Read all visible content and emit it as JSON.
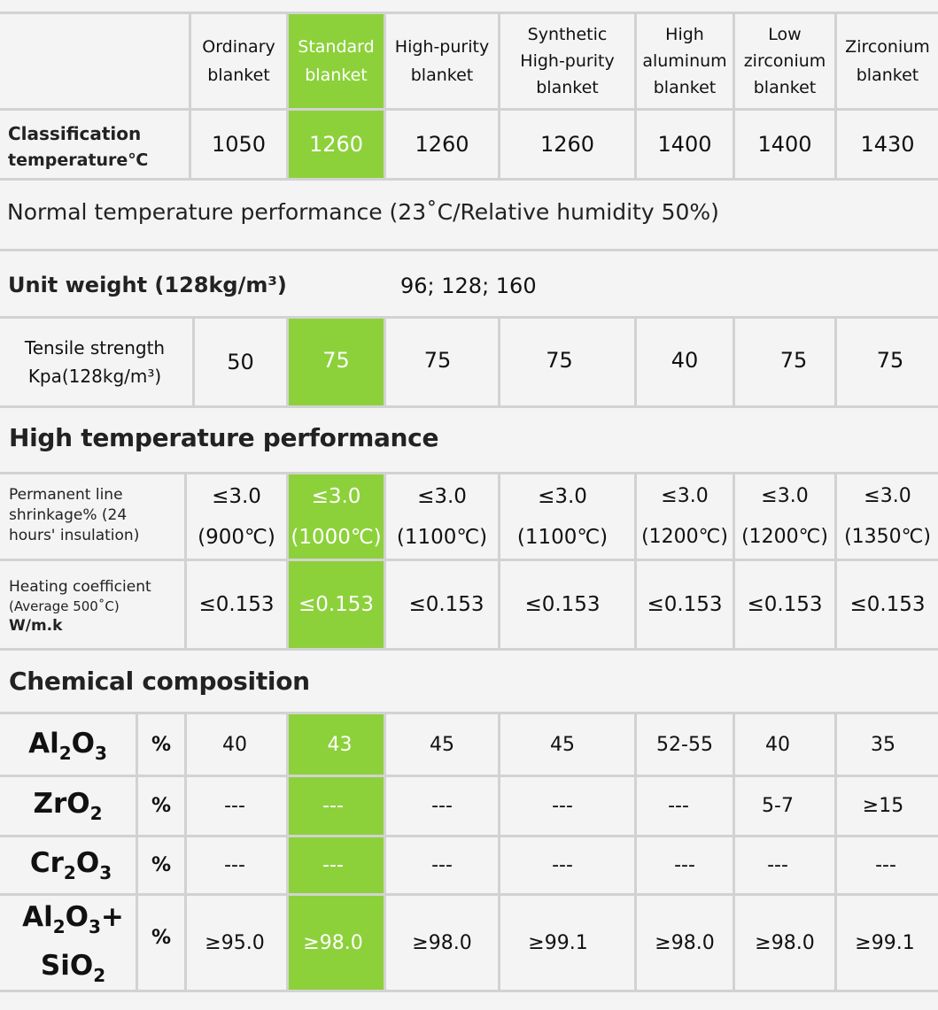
{
  "columns": [
    {
      "line1": "Ordinary",
      "line2": "blanket"
    },
    {
      "line1": "Standard",
      "line2": "blanket"
    },
    {
      "line1": "High-purity",
      "line2": "blanket"
    },
    {
      "line1": "Synthetic High-purity",
      "line2": "blanket"
    },
    {
      "line1": "High aluminum",
      "line2": "blanket"
    },
    {
      "line1": "Low zirconium",
      "line2": "blanket"
    },
    {
      "line1": "Zirconium",
      "line2": "blanket"
    }
  ],
  "highlight_color": "#8cd13a",
  "classification": {
    "label_line1": "Classification",
    "label_line2": "temperature℃",
    "values": [
      "1050",
      "1260",
      "1260",
      "1260",
      "1400",
      "1400",
      "1430"
    ]
  },
  "normal_temp_title": "Normal temperature performance (23˚C/Relative humidity 50%)",
  "unit_weight": {
    "label": "Unit weight (128kg/m³)",
    "value": "96; 128; 160"
  },
  "tensile": {
    "label_line1": "Tensile strength",
    "label_line2": "Kpa(128kg/m³)",
    "values": [
      "50",
      "75",
      "75",
      "75",
      "40",
      "75",
      "75"
    ]
  },
  "high_temp_title": "High temperature performance",
  "shrinkage": {
    "label_line1": "Permanent line",
    "label_line2": "shrinkage% (24",
    "label_line3": "hours' insulation)",
    "values": [
      {
        "a": "≤3.0",
        "b": "(900℃)"
      },
      {
        "a": "≤3.0",
        "b": "(1000℃)"
      },
      {
        "a": "≤3.0",
        "b": "(1100℃)"
      },
      {
        "a": "≤3.0",
        "b": "(1100℃)"
      },
      {
        "a": "≤3.0",
        "b": "(1200℃)"
      },
      {
        "a": "≤3.0",
        "b": "(1200℃)"
      },
      {
        "a": "≤3.0",
        "b": "(1350℃)"
      }
    ]
  },
  "heating": {
    "label_line1": "Heating coefficient",
    "label_line2": "(Average 500˚C)",
    "label_line3": "W/m.k",
    "values": [
      "≤0.153",
      "≤0.153",
      "≤0.153",
      "≤0.153",
      "≤0.153",
      "≤0.153",
      "≤0.153"
    ]
  },
  "chemical_title": "Chemical composition",
  "chemical": [
    {
      "formula": "Al2O3",
      "unit": "%",
      "values": [
        "40",
        "43",
        "45",
        "45",
        "52-55",
        "40",
        "35"
      ]
    },
    {
      "formula": "ZrO2",
      "unit": "%",
      "values": [
        "---",
        "---",
        "---",
        "---",
        "---",
        "5-7",
        "≥15"
      ]
    },
    {
      "formula": "Cr2O3",
      "unit": "%",
      "values": [
        "---",
        "---",
        "---",
        "---",
        "---",
        "---",
        "---"
      ]
    },
    {
      "formula": "Al2O3+SiO2",
      "unit": "%",
      "values": [
        "≥95.0",
        "≥98.0",
        "≥98.0",
        "≥99.1",
        "≥98.0",
        "≥98.0",
        "≥99.1"
      ]
    }
  ]
}
